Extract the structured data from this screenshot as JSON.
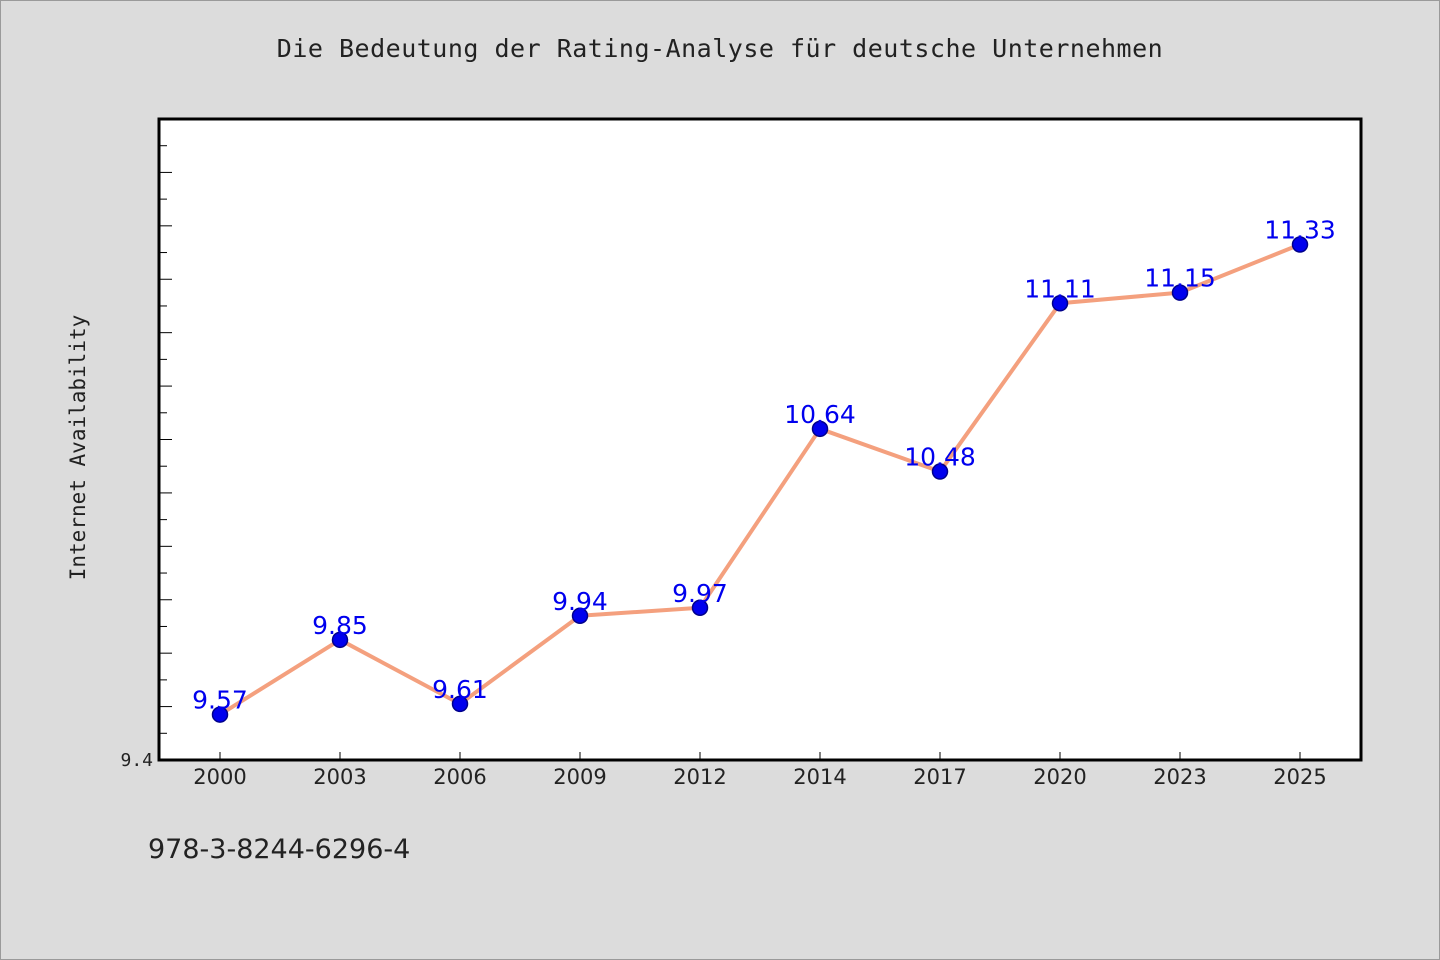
{
  "page": {
    "background": "#dcdcdc",
    "footer_text": "978-3-8244-6296-4"
  },
  "chart_data": {
    "type": "line",
    "title": "Die Bedeutung der Rating-Analyse für deutsche Unternehmen",
    "xlabel": "",
    "ylabel": "Internet Availability",
    "categories": [
      "2000",
      "2003",
      "2006",
      "2009",
      "2012",
      "2014",
      "2017",
      "2020",
      "2023",
      "2025"
    ],
    "series": [
      {
        "values": [
          9.57,
          9.85,
          9.61,
          9.94,
          9.97,
          10.64,
          10.48,
          11.11,
          11.15,
          11.33
        ]
      }
    ],
    "data_labels": [
      "9.57",
      "9.85",
      "9.61",
      "9.94",
      "9.97",
      "10.64",
      "10.48",
      "11.11",
      "11.15",
      "11.33"
    ],
    "ylim": [
      9.4,
      11.8
    ],
    "y_tick_labels": [
      "9.4"
    ],
    "y_minor_step": 0.1,
    "grid": false,
    "colors": {
      "line": "#f4a07e",
      "marker": "#0000ee",
      "marker_edge": "#00008b",
      "data_label": "#0000ee",
      "plot_background": "#ffffff",
      "axis": "#000000"
    }
  }
}
